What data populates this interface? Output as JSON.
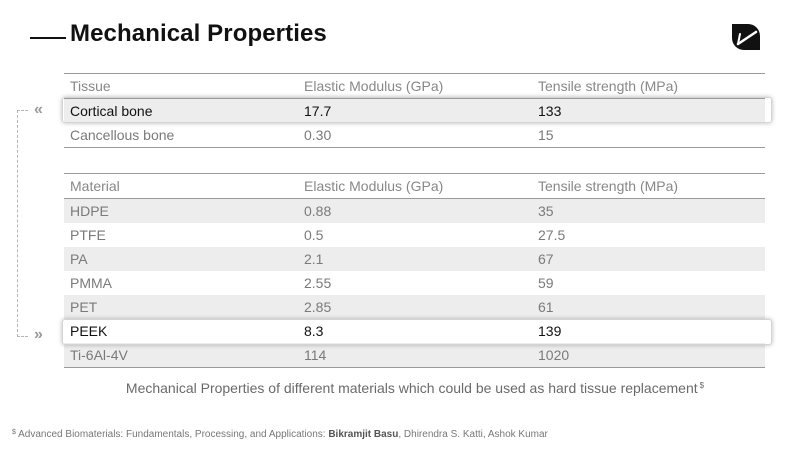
{
  "page": {
    "title": "Mechanical Properties",
    "logo_icon": "leaf-logo-icon"
  },
  "tissue_table": {
    "headers": [
      "Tissue",
      "Elastic Modulus (GPa)",
      "Tensile strength (MPa)"
    ],
    "rows": [
      [
        "Cortical bone",
        "17.7",
        "133"
      ],
      [
        "Cancellous bone",
        "0.30",
        "15"
      ]
    ]
  },
  "material_table": {
    "headers": [
      "Material",
      "Elastic Modulus (GPa)",
      "Tensile strength (MPa)"
    ],
    "rows": [
      [
        "HDPE",
        "0.88",
        "35"
      ],
      [
        "PTFE",
        "0.5",
        "27.5"
      ],
      [
        "PA",
        "2.1",
        "67"
      ],
      [
        "PMMA",
        "2.55",
        "59"
      ],
      [
        "PET",
        "2.85",
        "61"
      ],
      [
        "PEEK",
        "8.3",
        "139"
      ],
      [
        "Ti-6Al-4V",
        "114",
        "1020"
      ]
    ]
  },
  "connector": {
    "top_glyph": "«",
    "bottom_glyph": "»"
  },
  "caption": {
    "text": "Mechanical Properties of different materials which could be used as hard tissue replacement",
    "mark": "$"
  },
  "footnote": {
    "mark": "$",
    "source": "Advanced Biomaterials: Fundamentals, Processing, and Applications:",
    "author_bold": "Bikramjit Basu",
    "authors_rest": ", Dhirendra S. Katti, Ashok Kumar"
  },
  "colors": {
    "title": "#111111",
    "text": "#7a7a7a",
    "row_shade": "#ededed",
    "rule": "#9a9a9a"
  }
}
